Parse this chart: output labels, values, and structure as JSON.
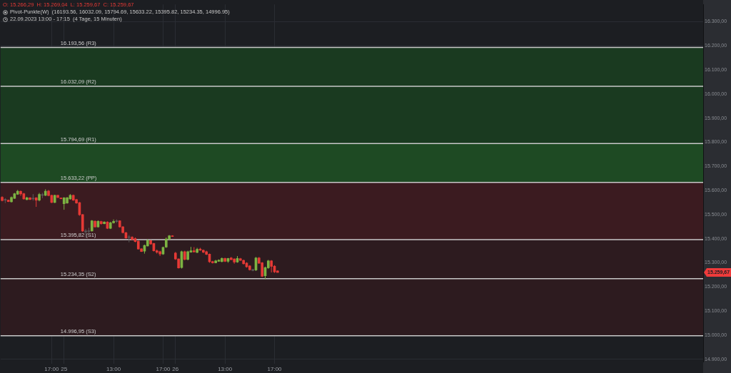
{
  "chart_data": {
    "type": "candlestick",
    "title": "O: 15.266,29  H: 15.269,04  L: 15.259,67  C: 15.259,67",
    "subtitle": "Pivot-Punkte(W)  (16193.56, 16032.09, 15794.69, 15633.22, 15395.82, 15234.35, 14996.95)",
    "annotations": [
      "22.09.2023 13:00 - 17:15  (4 Tage, 15 Minuten)",
      "15.259,67"
    ],
    "categories": [
      null,
      null,
      null,
      null,
      null,
      null,
      null,
      null,
      null,
      null,
      null,
      null,
      null,
      null,
      null,
      null,
      "17:00",
      null,
      null,
      null,
      "25",
      null,
      null,
      null,
      null,
      null,
      null,
      null,
      null,
      null,
      null,
      null,
      null,
      null,
      null,
      null,
      "13:00",
      null,
      null,
      null,
      null,
      null,
      null,
      null,
      null,
      null,
      null,
      null,
      null,
      null,
      null,
      null,
      "17:00",
      null,
      null,
      null,
      "26",
      null,
      null,
      null,
      null,
      null,
      null,
      null,
      null,
      null,
      null,
      null,
      null,
      null,
      null,
      null,
      "13:00",
      null,
      null,
      null,
      null,
      null,
      null,
      null,
      null,
      null,
      null,
      null,
      null,
      null,
      null,
      null,
      "17:00",
      null,
      null,
      null,
      null,
      null,
      null,
      null,
      null,
      null,
      null,
      null,
      null,
      null,
      null,
      null,
      null,
      null,
      null,
      null,
      null,
      null,
      null,
      null,
      null,
      null,
      null,
      null,
      null,
      null,
      null,
      null,
      null,
      null,
      null,
      null,
      null,
      null,
      null,
      null,
      null,
      null,
      null,
      null,
      null,
      null,
      null,
      null,
      null,
      null,
      null,
      null,
      null,
      null,
      null,
      null,
      null,
      null,
      null,
      null,
      null,
      null,
      null,
      null,
      null,
      null,
      null,
      null,
      null,
      null,
      null,
      null,
      null,
      null,
      null,
      null,
      null,
      null,
      null,
      null,
      null,
      null,
      null,
      null,
      null,
      null,
      null,
      null,
      null,
      null,
      null,
      null,
      null,
      null,
      null,
      null,
      null,
      null,
      null,
      null,
      null,
      null,
      null,
      null,
      null,
      null,
      null,
      null,
      null,
      null,
      null,
      null,
      null,
      null,
      null,
      null,
      null,
      null,
      null,
      null,
      null,
      null,
      null,
      null,
      null,
      null,
      null,
      null,
      null,
      null,
      null,
      null,
      null,
      null,
      null,
      null,
      null,
      null,
      null
    ],
    "ohlc": [
      [
        15572,
        15576,
        15555,
        15558
      ],
      [
        15560,
        15568,
        15548,
        15561
      ],
      [
        15560,
        15562,
        15552,
        15554
      ],
      [
        15553,
        15575,
        15550,
        15571
      ],
      [
        15567,
        15590,
        15565,
        15587
      ],
      [
        15584,
        15602,
        15582,
        15597
      ],
      [
        15596,
        15600,
        15578,
        15586
      ],
      [
        15587,
        15590,
        15562,
        15565
      ],
      [
        15562,
        15574,
        15560,
        15570
      ],
      [
        15570,
        15572,
        15560,
        15563
      ],
      [
        15565,
        15585,
        15558,
        15566
      ],
      [
        15570,
        15572,
        15532,
        15560
      ],
      [
        15560,
        15590,
        15555,
        15584
      ],
      [
        15582,
        15590,
        15568,
        15580
      ],
      [
        15580,
        15605,
        15577,
        15597
      ],
      [
        15598,
        15602,
        15576,
        15579
      ],
      [
        15580,
        15582,
        15548,
        15550
      ],
      [
        15550,
        15582,
        15548,
        15580
      ],
      [
        15580,
        15582,
        15569,
        15571
      ],
      [
        15568,
        15570,
        15564,
        15566
      ],
      [
        15545,
        15572,
        15520,
        15570
      ],
      [
        15548,
        15573,
        15545,
        15570
      ],
      [
        15565,
        15585,
        15562,
        15580
      ],
      [
        15580,
        15583,
        15557,
        15560
      ],
      [
        15562,
        15565,
        15545,
        15548
      ],
      [
        15550,
        15552,
        15495,
        15499
      ],
      [
        15500,
        15502,
        15428,
        15432
      ],
      [
        15432,
        15440,
        15405,
        15428
      ],
      [
        15430,
        15445,
        15420,
        15432
      ],
      [
        15432,
        15477,
        15430,
        15474
      ],
      [
        15472,
        15476,
        15446,
        15449
      ],
      [
        15449,
        15476,
        15446,
        15472
      ],
      [
        15471,
        15474,
        15458,
        15462
      ],
      [
        15462,
        15472,
        15460,
        15469
      ],
      [
        15469,
        15472,
        15440,
        15443
      ],
      [
        15443,
        15470,
        15440,
        15466
      ],
      [
        15466,
        15480,
        15463,
        15472
      ],
      [
        15472,
        15480,
        15466,
        15471
      ],
      [
        15474,
        15476,
        15446,
        15449
      ],
      [
        15449,
        15452,
        15422,
        15425
      ],
      [
        15425,
        15428,
        15400,
        15403
      ],
      [
        15408,
        15415,
        15385,
        15405
      ],
      [
        15406,
        15410,
        15394,
        15396
      ],
      [
        15400,
        15405,
        15385,
        15388
      ],
      [
        15390,
        15392,
        15355,
        15357
      ],
      [
        15358,
        15360,
        15345,
        15347
      ],
      [
        15348,
        15375,
        15338,
        15372
      ],
      [
        15370,
        15398,
        15368,
        15392
      ],
      [
        15392,
        15395,
        15375,
        15378
      ],
      [
        15380,
        15382,
        15347,
        15350
      ],
      [
        15350,
        15355,
        15338,
        15344
      ],
      [
        15346,
        15350,
        15328,
        15336
      ],
      [
        15336,
        15367,
        15333,
        15364
      ],
      [
        15365,
        15405,
        15362,
        15399
      ],
      [
        15398,
        15415,
        15396,
        15412
      ],
      [
        15412,
        15414,
        15408,
        15409
      ],
      [
        15340,
        15345,
        15312,
        15316
      ],
      [
        15316,
        15318,
        15276,
        15279
      ],
      [
        15280,
        15350,
        15276,
        15346
      ],
      [
        15346,
        15350,
        15310,
        15314
      ],
      [
        15314,
        15350,
        15310,
        15346
      ],
      [
        15344,
        15366,
        15342,
        15350
      ],
      [
        15350,
        15365,
        15343,
        15345
      ],
      [
        15343,
        15362,
        15340,
        15356
      ],
      [
        15357,
        15362,
        15350,
        15352
      ],
      [
        15352,
        15355,
        15340,
        15344
      ],
      [
        15346,
        15350,
        15332,
        15335
      ],
      [
        15336,
        15338,
        15300,
        15304
      ],
      [
        15305,
        15308,
        15297,
        15300
      ],
      [
        15300,
        15312,
        15298,
        15308
      ],
      [
        15306,
        15314,
        15304,
        15311
      ],
      [
        15305,
        15322,
        15302,
        15318
      ],
      [
        15318,
        15321,
        15303,
        15306
      ],
      [
        15306,
        15320,
        15300,
        15318
      ],
      [
        15320,
        15324,
        15311,
        15313
      ],
      [
        15316,
        15318,
        15296,
        15303
      ],
      [
        15303,
        15328,
        15300,
        15318
      ],
      [
        15317,
        15320,
        15308,
        15310
      ],
      [
        15310,
        15313,
        15293,
        15296
      ],
      [
        15299,
        15302,
        15280,
        15283
      ],
      [
        15287,
        15290,
        15268,
        15271
      ],
      [
        15272,
        15275,
        15265,
        15268
      ],
      [
        15270,
        15324,
        15266,
        15320
      ],
      [
        15320,
        15324,
        15296,
        15298
      ],
      [
        15300,
        15303,
        15241,
        15244
      ],
      [
        15246,
        15284,
        15232,
        15280
      ],
      [
        15279,
        15312,
        15275,
        15308
      ],
      [
        15308,
        15311,
        15260,
        15285
      ],
      [
        15286,
        15290,
        15258,
        15262
      ],
      [
        15266.29,
        15269.04,
        15259.67,
        15259.67
      ],
      null,
      null,
      null,
      null,
      null,
      null,
      null,
      null,
      null,
      null,
      null,
      null,
      null,
      null,
      null,
      null,
      null,
      null,
      null,
      null,
      null,
      null,
      null,
      null,
      null,
      null,
      null,
      null,
      null,
      null,
      null,
      null,
      null,
      null,
      null,
      null,
      null,
      null,
      null,
      null,
      null,
      null,
      null,
      null,
      null,
      null,
      null,
      null,
      null,
      null,
      null,
      null,
      null,
      null,
      null,
      null,
      null,
      null,
      null,
      null,
      null,
      null,
      null,
      null,
      null,
      null,
      null,
      null,
      null,
      null,
      null,
      null,
      null,
      null,
      null,
      null,
      null,
      null,
      null,
      null,
      null,
      null,
      null,
      null,
      null,
      null,
      null,
      null,
      null,
      null,
      null,
      null,
      null,
      null,
      null,
      null,
      null,
      null,
      null,
      null,
      null,
      null,
      null,
      null,
      null,
      null,
      null,
      null,
      null,
      null,
      null,
      null,
      null,
      null,
      null,
      null,
      null,
      null,
      null,
      null,
      null,
      null,
      null,
      null,
      null,
      null,
      null,
      null,
      null,
      null,
      null,
      null,
      null,
      null,
      null,
      null,
      null
    ],
    "colors": [
      "#e53935",
      "#5a5a5a",
      "#e53935",
      "#7cb342",
      "#7cb342",
      "#7cb342",
      "#e53935",
      "#e53935",
      "#7cb342",
      "#e53935",
      "#5a5a5a",
      "#e53935",
      "#7cb342",
      "#5a5a5a",
      "#7cb342",
      "#e53935",
      "#e53935",
      "#7cb342",
      "#e53935",
      "#e53935",
      "#7cb342",
      "#7cb342",
      "#7cb342",
      "#e53935",
      "#e53935",
      "#e53935",
      "#e53935",
      "#5a5a5a",
      "#5a5a5a",
      "#7cb342",
      "#e53935",
      "#7cb342",
      "#e53935",
      "#7cb342",
      "#e53935",
      "#7cb342",
      "#7cb342",
      "#5a5a5a",
      "#e53935",
      "#e53935",
      "#e53935",
      "#5a5a5a",
      "#e53935",
      "#e53935",
      "#e53935",
      "#e53935",
      "#7cb342",
      "#7cb342",
      "#e53935",
      "#e53935",
      "#e53935",
      "#e53935",
      "#7cb342",
      "#7cb342",
      "#7cb342",
      "#e53935",
      "#e53935",
      "#e53935",
      "#7cb342",
      "#e53935",
      "#7cb342",
      "#7cb342",
      "#e53935",
      "#7cb342",
      "#e53935",
      "#e53935",
      "#e53935",
      "#e53935",
      "#e53935",
      "#7cb342",
      "#7cb342",
      "#7cb342",
      "#e53935",
      "#7cb342",
      "#e53935",
      "#e53935",
      "#7cb342",
      "#e53935",
      "#e53935",
      "#e53935",
      "#e53935",
      "#5a5a5a",
      "#7cb342",
      "#e53935",
      "#e53935",
      "#7cb342",
      "#7cb342",
      "#e53935",
      "#e53935",
      "#e53935",
      null,
      null,
      null,
      null,
      null,
      null,
      null,
      null,
      null,
      null,
      null,
      null,
      null,
      null,
      null,
      null,
      null,
      null,
      null,
      null,
      null,
      null,
      null,
      null,
      null,
      null,
      null,
      null,
      null,
      null,
      null,
      null,
      null,
      null,
      null,
      null,
      null,
      null,
      null,
      null,
      null,
      null,
      null,
      null,
      null,
      null,
      null,
      null,
      null,
      null,
      null,
      null,
      null,
      null,
      null,
      null,
      null,
      null,
      null,
      null,
      null,
      null,
      null,
      null,
      null,
      null,
      null,
      null,
      null,
      null,
      null,
      null,
      null,
      null,
      null,
      null,
      null,
      null,
      null,
      null,
      null,
      null,
      null,
      null,
      null,
      null,
      null,
      null,
      null,
      null,
      null,
      null,
      null,
      null,
      null,
      null,
      null,
      null,
      null,
      null,
      null,
      null,
      null,
      null,
      null,
      null,
      null,
      null,
      null,
      null,
      null,
      null,
      null,
      null,
      null,
      null,
      null,
      null,
      null,
      null,
      null,
      null,
      null,
      null,
      null,
      null,
      null,
      null,
      null,
      null,
      null,
      null,
      null,
      null,
      null,
      null,
      null
    ],
    "ylim": [
      14890,
      16372
    ],
    "yticks": [
      {
        "value": 14900,
        "label": "14.900,00"
      },
      {
        "value": 15000,
        "label": "15.000,00"
      },
      {
        "value": 15100,
        "label": "15.100,00"
      },
      {
        "value": 15200,
        "label": "15.200,00"
      },
      {
        "value": 15300,
        "label": "15.300,00"
      },
      {
        "value": 15400,
        "label": "15.400,00"
      },
      {
        "value": 15500,
        "label": "15.500,00"
      },
      {
        "value": 15600,
        "label": "15.600,00"
      },
      {
        "value": 15700,
        "label": "15.700,00"
      },
      {
        "value": 15800,
        "label": "15.800,00"
      },
      {
        "value": 15900,
        "label": "15.900,00"
      },
      {
        "value": 16000,
        "label": "16.000,00"
      },
      {
        "value": 16100,
        "label": "16.100,00"
      },
      {
        "value": 16200,
        "label": "16.200,00"
      },
      {
        "value": 16300,
        "label": "16.300,00"
      }
    ],
    "grid": true,
    "bands": [
      {
        "axis": "y",
        "from": 15794.69,
        "to": 16193.56,
        "color": "#1a3a20"
      },
      {
        "axis": "y",
        "from": 15633.22,
        "to": 15794.69,
        "color": "#1e4a23"
      },
      {
        "axis": "y",
        "from": 15395.82,
        "to": 15633.22,
        "color": "#3b1b20"
      },
      {
        "axis": "y",
        "from": 14996.95,
        "to": 15395.82,
        "color": "#2d1b1f"
      }
    ],
    "ref_lines": [
      {
        "axis": "y",
        "value": 16193.56,
        "label": "16.193,56 (R3)",
        "color": "#c8c8c8"
      },
      {
        "axis": "y",
        "value": 16032.09,
        "label": "16.032,09 (R2)",
        "color": "#c8c8c8"
      },
      {
        "axis": "y",
        "value": 15794.69,
        "label": "15.794,69 (R1)",
        "color": "#c8c8c8"
      },
      {
        "axis": "y",
        "value": 15633.22,
        "label": "15.633,22 (PP)",
        "color": "#c8c8c8"
      },
      {
        "axis": "y",
        "value": 15395.82,
        "label": "15.395,82 (S1)",
        "color": "#c8c8c8"
      },
      {
        "axis": "y",
        "value": 15234.35,
        "label": "15.234,35 (S2)",
        "color": "#c8c8c8"
      },
      {
        "axis": "y",
        "value": 14996.95,
        "label": "14.996,95 (S3)",
        "color": "#c8c8c8"
      }
    ]
  }
}
